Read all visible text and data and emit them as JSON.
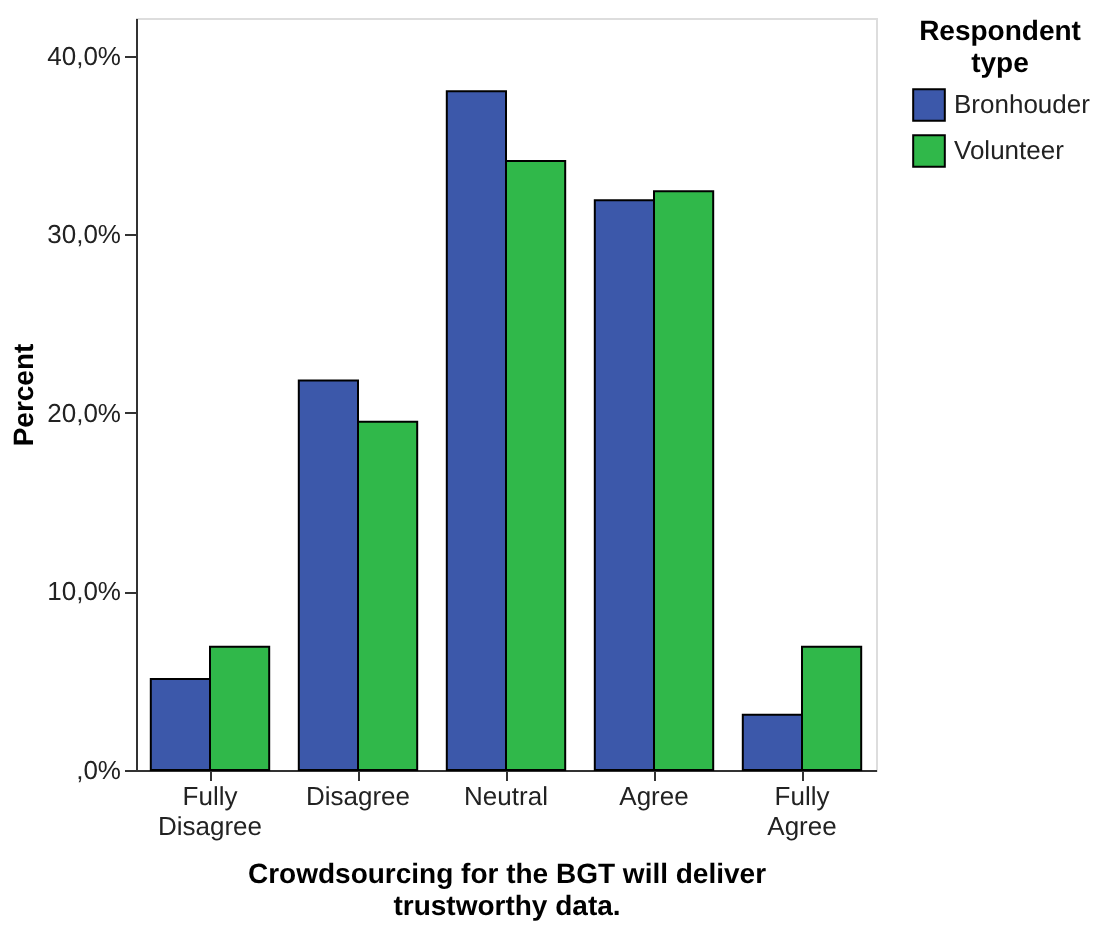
{
  "chart_data": {
    "type": "bar",
    "xlabel": "Crowdsourcing for the BGT will deliver trustworthy data.",
    "ylabel": "Percent",
    "legend_title": "Respondent type",
    "categories": [
      "Fully Disagree",
      "Disagree",
      "Neutral",
      "Agree",
      "Fully Agree"
    ],
    "series": [
      {
        "name": "Bronhouder",
        "color": "#3c58aa",
        "values": [
          5.1,
          21.8,
          38.0,
          31.9,
          3.1
        ]
      },
      {
        "name": "Volunteer",
        "color": "#30b84a",
        "values": [
          6.9,
          19.5,
          34.1,
          32.4,
          6.9
        ]
      }
    ],
    "ylim": [
      0,
      42.1
    ],
    "yticks": [
      {
        "value": 0,
        "label": ",0%"
      },
      {
        "value": 10,
        "label": "10,0%"
      },
      {
        "value": 20,
        "label": "20,0%"
      },
      {
        "value": 30,
        "label": "30,0%"
      },
      {
        "value": 40,
        "label": "40,0%"
      }
    ],
    "grid": false,
    "legend": "top right"
  }
}
